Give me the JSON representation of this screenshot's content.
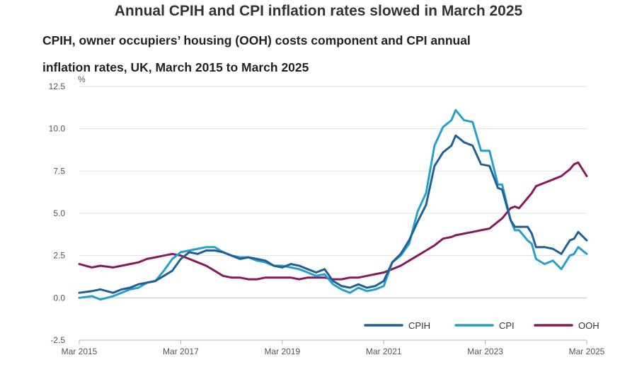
{
  "headline": "Annual CPIH and CPI inflation rates slowed in March 2025",
  "chart_data": {
    "type": "line",
    "title": "Annual CPIH and CPI inflation rates slowed in March 2025",
    "subtitle_line1": "CPIH, owner occupiers’ housing (OOH) costs component and CPI annual",
    "subtitle_line2": "inflation rates, UK, March 2015 to March 2025",
    "ylabel": "%",
    "xlabel": "",
    "ylim": [
      -2.5,
      12.5
    ],
    "xlim": [
      0,
      120
    ],
    "y_ticks": [
      12.5,
      10.0,
      7.5,
      5.0,
      2.5,
      0.0,
      -2.5
    ],
    "y_tick_labels": [
      "12.5",
      "10.0",
      "7.5",
      "5.0",
      "2.5",
      "0.0",
      "-2.5"
    ],
    "x_ticks": [
      0,
      24,
      48,
      72,
      96,
      120
    ],
    "x_tick_labels": [
      "Mar 2015",
      "Mar 2017",
      "Mar 2019",
      "Mar 2021",
      "Mar 2023",
      "Mar 2025"
    ],
    "legend_position": "bottom-right",
    "series": [
      {
        "name": "CPIH",
        "color": "#206095",
        "x": [
          0,
          3,
          5,
          8,
          10,
          12,
          14,
          16,
          18,
          20,
          22,
          24,
          26,
          28,
          30,
          32,
          34,
          36,
          38,
          40,
          42,
          44,
          46,
          48,
          50,
          52,
          54,
          56,
          58,
          60,
          62,
          64,
          66,
          68,
          70,
          72,
          74,
          76,
          78,
          80,
          82,
          84,
          86,
          88,
          89,
          91,
          93,
          95,
          97,
          99,
          100,
          102,
          103,
          104,
          106,
          107,
          108,
          110,
          112,
          114,
          116,
          117,
          118,
          120
        ],
        "values": [
          0.3,
          0.4,
          0.5,
          0.3,
          0.5,
          0.6,
          0.8,
          0.9,
          1.0,
          1.3,
          1.6,
          2.3,
          2.7,
          2.6,
          2.8,
          2.8,
          2.7,
          2.5,
          2.3,
          2.4,
          2.3,
          2.2,
          1.9,
          1.8,
          2.0,
          1.9,
          1.7,
          1.5,
          1.7,
          1.0,
          0.7,
          0.6,
          0.8,
          0.6,
          0.7,
          1.0,
          2.1,
          2.6,
          3.4,
          4.5,
          5.5,
          7.8,
          8.6,
          9.0,
          9.6,
          9.2,
          9.0,
          7.9,
          7.8,
          6.5,
          6.4,
          4.6,
          4.2,
          4.2,
          4.2,
          3.8,
          3.0,
          3.0,
          2.9,
          2.6,
          3.4,
          3.5,
          3.9,
          3.4
        ]
      },
      {
        "name": "CPI",
        "color": "#27a0cc",
        "x": [
          0,
          3,
          5,
          8,
          10,
          12,
          14,
          16,
          18,
          20,
          22,
          24,
          26,
          28,
          30,
          32,
          34,
          36,
          38,
          40,
          42,
          44,
          46,
          48,
          50,
          52,
          54,
          56,
          58,
          60,
          62,
          64,
          66,
          68,
          70,
          72,
          74,
          76,
          78,
          80,
          82,
          84,
          86,
          88,
          89,
          91,
          93,
          95,
          97,
          99,
          100,
          102,
          103,
          104,
          106,
          107,
          108,
          110,
          112,
          114,
          116,
          117,
          118,
          120
        ],
        "values": [
          0.0,
          0.1,
          -0.1,
          0.1,
          0.3,
          0.5,
          0.6,
          0.9,
          1.0,
          1.6,
          2.3,
          2.7,
          2.8,
          2.9,
          3.0,
          3.0,
          2.7,
          2.5,
          2.4,
          2.4,
          2.2,
          2.1,
          1.9,
          1.9,
          1.8,
          1.7,
          1.5,
          1.3,
          1.4,
          0.8,
          0.5,
          0.3,
          0.6,
          0.4,
          0.5,
          0.7,
          2.1,
          2.5,
          3.2,
          5.1,
          6.2,
          9.0,
          10.1,
          10.5,
          11.1,
          10.5,
          10.4,
          8.7,
          8.7,
          6.7,
          6.7,
          4.6,
          4.0,
          4.0,
          3.4,
          3.2,
          2.3,
          2.0,
          2.2,
          1.7,
          2.5,
          2.6,
          3.0,
          2.6
        ]
      },
      {
        "name": "OOH",
        "color": "#871a5b",
        "x": [
          0,
          3,
          5,
          8,
          10,
          12,
          14,
          16,
          18,
          20,
          22,
          24,
          26,
          28,
          30,
          32,
          34,
          36,
          38,
          40,
          42,
          44,
          46,
          48,
          50,
          52,
          54,
          56,
          58,
          60,
          62,
          64,
          66,
          68,
          70,
          72,
          74,
          76,
          78,
          80,
          82,
          84,
          86,
          88,
          89,
          91,
          93,
          95,
          97,
          99,
          100,
          102,
          103,
          104,
          106,
          107,
          108,
          110,
          112,
          114,
          116,
          117,
          118,
          120
        ],
        "values": [
          2.0,
          1.8,
          1.9,
          1.8,
          1.9,
          2.0,
          2.1,
          2.3,
          2.4,
          2.5,
          2.6,
          2.5,
          2.3,
          2.1,
          1.9,
          1.6,
          1.3,
          1.2,
          1.2,
          1.1,
          1.1,
          1.2,
          1.2,
          1.2,
          1.2,
          1.1,
          1.2,
          1.2,
          1.2,
          1.1,
          1.1,
          1.2,
          1.2,
          1.3,
          1.4,
          1.5,
          1.7,
          1.9,
          2.2,
          2.5,
          2.8,
          3.1,
          3.5,
          3.6,
          3.7,
          3.8,
          3.9,
          4.0,
          4.1,
          4.5,
          4.7,
          5.3,
          5.4,
          5.3,
          5.9,
          6.2,
          6.6,
          6.8,
          7.0,
          7.2,
          7.6,
          7.9,
          8.0,
          7.2
        ]
      }
    ]
  }
}
